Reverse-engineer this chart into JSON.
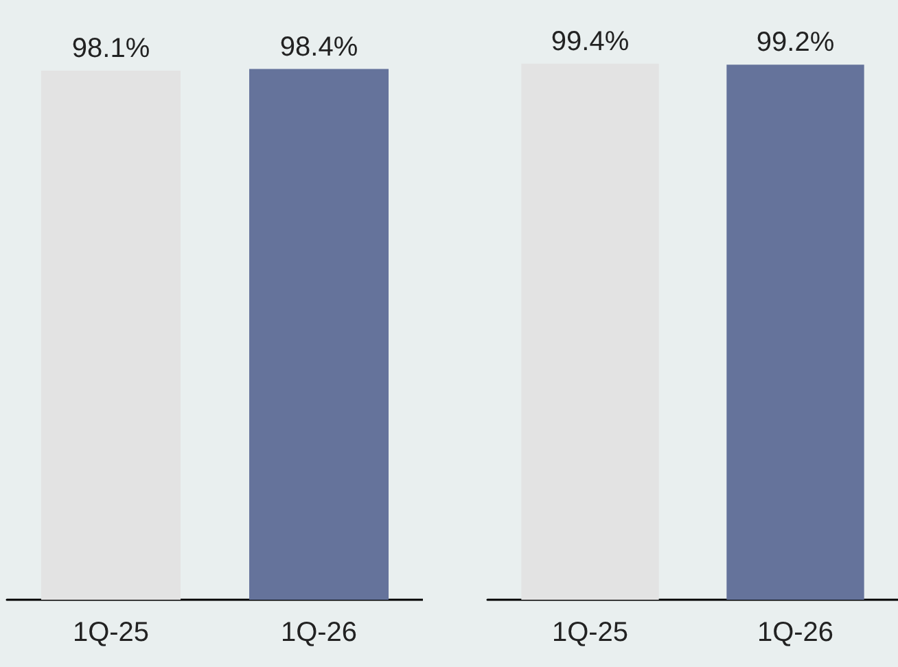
{
  "chart_data": [
    {
      "type": "bar",
      "categories": [
        "1Q-25",
        "1Q-26"
      ],
      "values": [
        98.1,
        98.4
      ],
      "colors": [
        "#e3e3e3",
        "#65739b"
      ],
      "value_labels": [
        "98.1%",
        "98.4%"
      ],
      "grid": false
    },
    {
      "type": "bar",
      "categories": [
        "1Q-25",
        "1Q-26"
      ],
      "values": [
        99.4,
        99.2
      ],
      "colors": [
        "#e3e3e3",
        "#65739b"
      ],
      "value_labels": [
        "99.4%",
        "99.2%"
      ],
      "grid": false
    }
  ]
}
